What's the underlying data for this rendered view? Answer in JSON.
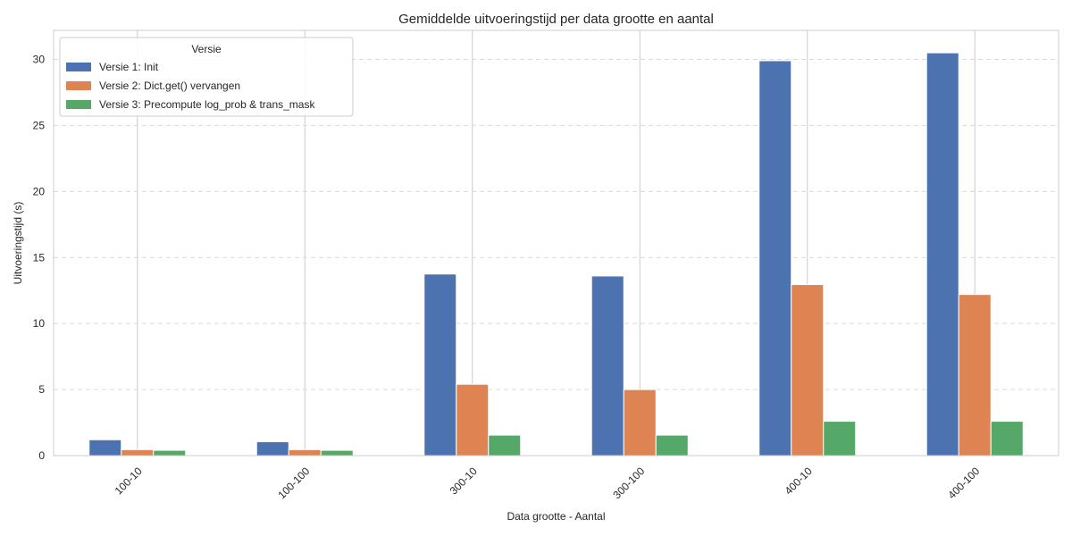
{
  "chart_data": {
    "type": "bar",
    "title": "Gemiddelde uitvoeringstijd per data grootte en aantal",
    "xlabel": "Data grootte - Aantal",
    "ylabel": "Uitvoeringstijd (s)",
    "categories": [
      "100-10",
      "100-100",
      "300-10",
      "300-100",
      "400-10",
      "400-100"
    ],
    "ylim": [
      0,
      32.2
    ],
    "yticks": [
      0,
      5,
      10,
      15,
      20,
      25,
      30
    ],
    "grid": {
      "x": true,
      "y": true,
      "y_style": "dashed"
    },
    "legend": {
      "title": "Versie",
      "placement": "top-left"
    },
    "series": [
      {
        "name": "Versie 1: Init",
        "color": "#4c72b0",
        "values": [
          1.2,
          1.05,
          13.75,
          13.6,
          29.9,
          30.5
        ]
      },
      {
        "name": "Versie 2: Dict.get() vervangen",
        "color": "#dd8452",
        "values": [
          0.45,
          0.45,
          5.4,
          5.0,
          12.95,
          12.2
        ]
      },
      {
        "name": "Versie 3: Precompute log_prob & trans_mask",
        "color": "#55a868",
        "values": [
          0.4,
          0.4,
          1.55,
          1.55,
          2.6,
          2.6
        ]
      }
    ]
  }
}
